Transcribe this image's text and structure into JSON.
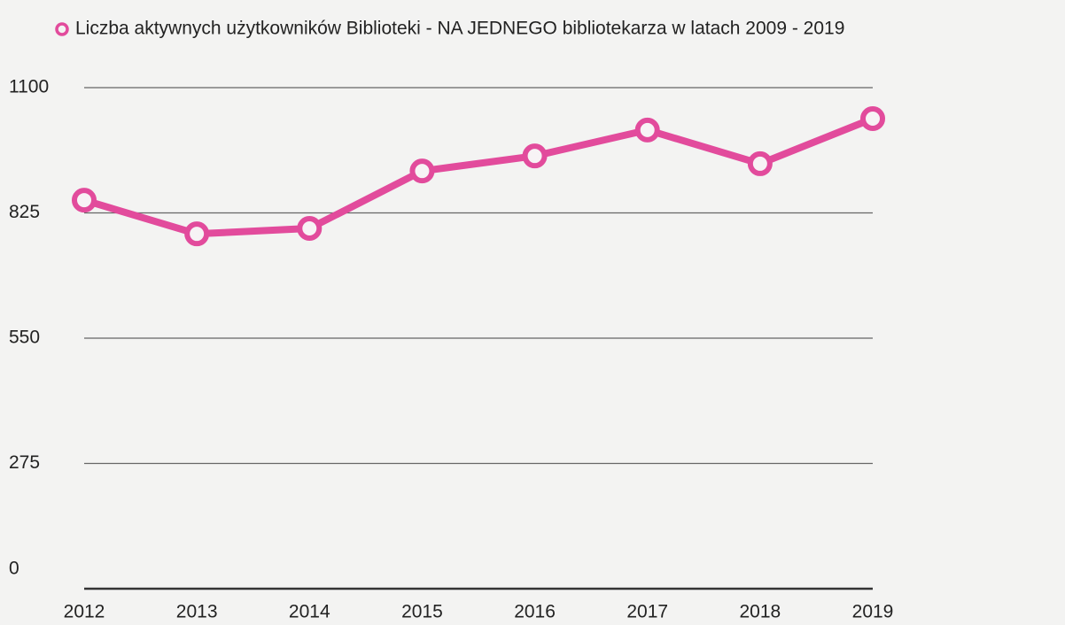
{
  "chart_data": {
    "type": "line",
    "title": "Liczba aktywnych użytkowników Biblioteki - NA JEDNEGO bibliotekarza w latach 2009 - 2019",
    "categories": [
      "2012",
      "2013",
      "2014",
      "2015",
      "2016",
      "2017",
      "2018",
      "2019"
    ],
    "series": [
      {
        "name": "Liczba aktywnych użytkowników Biblioteki - NA JEDNEGO bibliotekarza w latach 2009 - 2019",
        "color": "#e24b9c",
        "values": [
          853,
          779,
          791,
          917,
          950,
          1007,
          933,
          1032
        ]
      }
    ],
    "ylim": [
      0,
      1100
    ],
    "yticks": [
      0,
      275,
      550,
      825,
      1100
    ],
    "grid": true,
    "legend": "top"
  }
}
